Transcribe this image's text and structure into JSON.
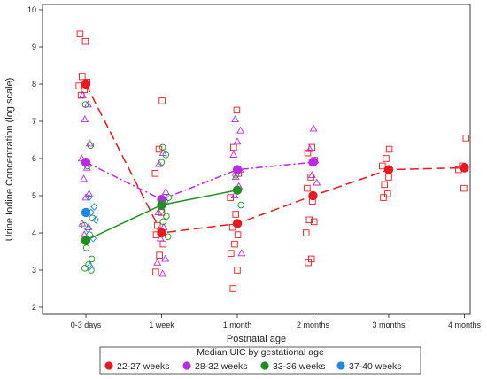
{
  "chart_data": {
    "type": "scatter",
    "xlabel": "Postnatal age",
    "ylabel": "Urine Iodine Concentration (log scale)",
    "categories": [
      "0-3 days",
      "1 week",
      "1 month",
      "2 months",
      "3 months",
      "4 months"
    ],
    "ylim": [
      2,
      10
    ],
    "yticks": [
      2,
      3,
      4,
      5,
      6,
      7,
      8,
      9,
      10
    ],
    "grid": false,
    "legend": {
      "title": "Median UIC by gestational age",
      "placement": "bottom",
      "entries": [
        "22-27 weeks",
        "28-32 weeks",
        "33-36 weeks",
        "37-40 weeks"
      ]
    },
    "series": [
      {
        "name": "22-27 weeks",
        "color": "#e8191f",
        "marker": "square",
        "dash": "10,5",
        "median_x": [
          0,
          1,
          2,
          3,
          4,
          5
        ],
        "median_y": [
          8.0,
          4.0,
          4.25,
          5.0,
          5.7,
          5.75
        ],
        "points": [
          [
            0,
            9.35
          ],
          [
            0,
            9.15
          ],
          [
            0,
            8.2
          ],
          [
            0,
            8.05
          ],
          [
            0,
            7.95
          ],
          [
            0,
            7.85
          ],
          [
            0,
            7.7
          ],
          [
            1,
            7.55
          ],
          [
            1,
            6.25
          ],
          [
            1,
            5.6
          ],
          [
            1,
            4.55
          ],
          [
            1,
            4.2
          ],
          [
            1,
            4.05
          ],
          [
            1,
            3.95
          ],
          [
            1,
            3.7
          ],
          [
            1,
            3.4
          ],
          [
            1,
            2.95
          ],
          [
            2,
            7.3
          ],
          [
            2,
            6.3
          ],
          [
            2,
            5.6
          ],
          [
            2,
            4.95
          ],
          [
            2,
            4.5
          ],
          [
            2,
            4.15
          ],
          [
            2,
            3.95
          ],
          [
            2,
            3.7
          ],
          [
            2,
            3.45
          ],
          [
            2,
            3.0
          ],
          [
            2,
            2.5
          ],
          [
            3,
            6.3
          ],
          [
            3,
            6.15
          ],
          [
            3,
            5.95
          ],
          [
            3,
            5.5
          ],
          [
            3,
            5.2
          ],
          [
            3,
            4.85
          ],
          [
            3,
            4.35
          ],
          [
            3,
            4.3
          ],
          [
            3,
            4.0
          ],
          [
            3,
            3.3
          ],
          [
            3,
            3.2
          ],
          [
            4,
            6.25
          ],
          [
            4,
            6.0
          ],
          [
            4,
            5.8
          ],
          [
            4,
            5.5
          ],
          [
            4,
            5.3
          ],
          [
            4,
            5.05
          ],
          [
            4,
            4.95
          ],
          [
            5,
            6.55
          ],
          [
            5,
            5.8
          ],
          [
            5,
            5.7
          ],
          [
            5,
            5.2
          ]
        ]
      },
      {
        "name": "28-32 weeks",
        "color": "#b92be6",
        "marker": "triangle",
        "dash": "8,3,2,3",
        "median_x": [
          0,
          1,
          2,
          3
        ],
        "median_y": [
          5.9,
          4.9,
          5.7,
          5.9
        ],
        "points": [
          [
            0,
            7.7
          ],
          [
            0,
            7.45
          ],
          [
            0,
            7.05
          ],
          [
            0,
            6.4
          ],
          [
            0,
            6.0
          ],
          [
            0,
            5.75
          ],
          [
            0,
            5.45
          ],
          [
            0,
            5.05
          ],
          [
            0,
            4.95
          ],
          [
            0,
            4.25
          ],
          [
            0,
            4.15
          ],
          [
            0,
            3.95
          ],
          [
            1,
            6.15
          ],
          [
            1,
            5.85
          ],
          [
            1,
            5.1
          ],
          [
            1,
            4.85
          ],
          [
            1,
            4.55
          ],
          [
            1,
            4.15
          ],
          [
            1,
            3.85
          ],
          [
            1,
            3.3
          ],
          [
            1,
            3.2
          ],
          [
            1,
            2.9
          ],
          [
            2,
            7.05
          ],
          [
            2,
            6.75
          ],
          [
            2,
            6.45
          ],
          [
            2,
            6.1
          ],
          [
            2,
            5.7
          ],
          [
            2,
            5.5
          ],
          [
            2,
            5.25
          ],
          [
            2,
            5.0
          ],
          [
            2,
            3.45
          ],
          [
            3,
            6.8
          ],
          [
            3,
            6.25
          ],
          [
            3,
            5.95
          ],
          [
            3,
            5.55
          ],
          [
            3,
            5.35
          ]
        ]
      },
      {
        "name": "33-36 weeks",
        "color": "#1f8f24",
        "marker": "circle",
        "dash": "",
        "median_x": [
          0,
          1,
          2
        ],
        "median_y": [
          3.8,
          4.75,
          5.15
        ],
        "points": [
          [
            0,
            7.45
          ],
          [
            0,
            6.35
          ],
          [
            0,
            5.8
          ],
          [
            0,
            4.4
          ],
          [
            0,
            4.2
          ],
          [
            0,
            3.95
          ],
          [
            0,
            3.6
          ],
          [
            0,
            3.3
          ],
          [
            0,
            3.15
          ],
          [
            0,
            3.05
          ],
          [
            0,
            3.0
          ],
          [
            1,
            6.3
          ],
          [
            1,
            6.1
          ],
          [
            1,
            5.9
          ],
          [
            1,
            4.95
          ],
          [
            1,
            4.85
          ],
          [
            1,
            4.6
          ],
          [
            1,
            4.45
          ],
          [
            1,
            4.3
          ],
          [
            1,
            3.9
          ],
          [
            2,
            5.55
          ],
          [
            2,
            4.75
          ]
        ]
      },
      {
        "name": "37-40 weeks",
        "color": "#1e88e5",
        "marker": "diamond",
        "dash": "",
        "median_x": [
          0
        ],
        "median_y": [
          4.55
        ],
        "points": [
          [
            0,
            4.95
          ],
          [
            0,
            4.7
          ],
          [
            0,
            4.55
          ],
          [
            0,
            4.35
          ],
          [
            0,
            4.1
          ],
          [
            0,
            3.85
          ],
          [
            0,
            3.1
          ]
        ]
      }
    ]
  }
}
